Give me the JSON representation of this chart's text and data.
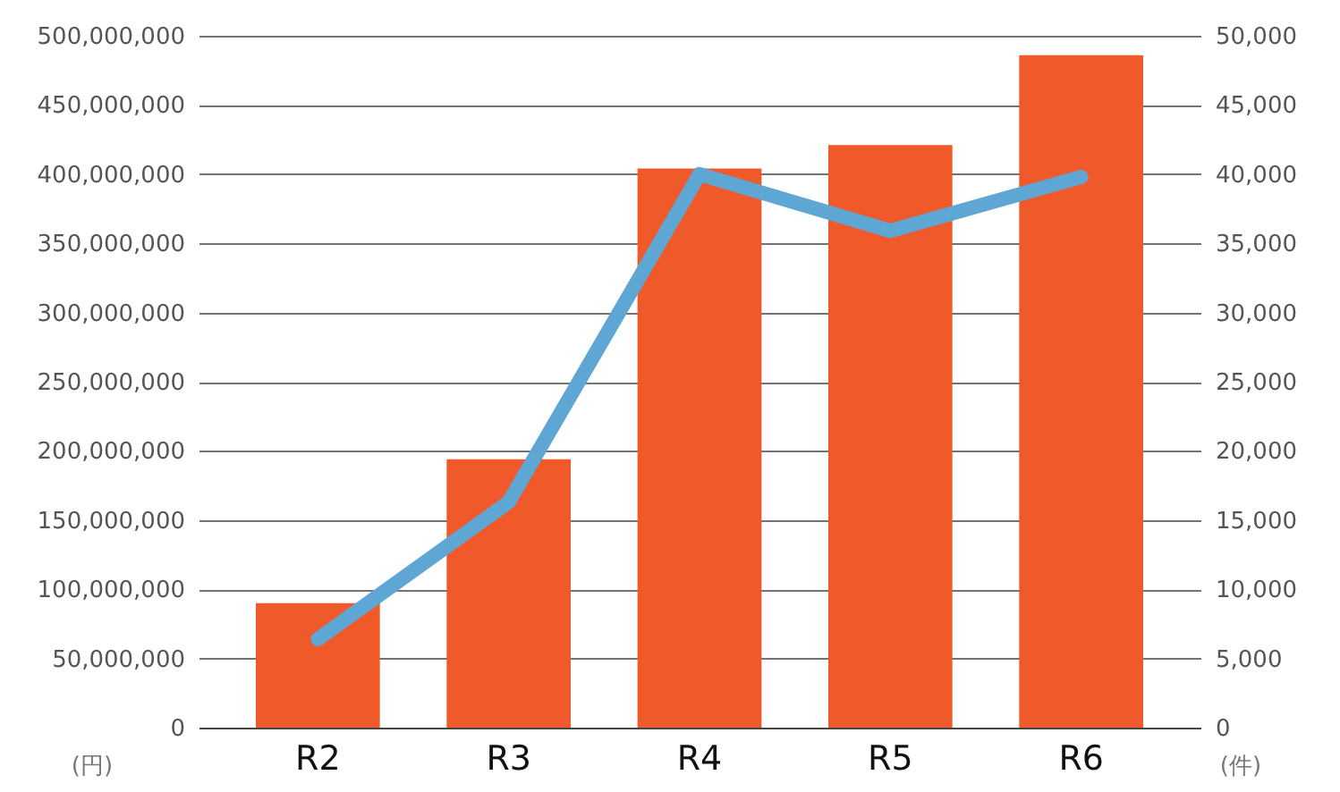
{
  "chart_data": {
    "type": "bar",
    "categories": [
      "R2",
      "R3",
      "R4",
      "R5",
      "R6"
    ],
    "ylabel": "(円)",
    "y2label": "(件)",
    "series": [
      {
        "color": "#f05a2a",
        "values": [
          90000000,
          194000000,
          404000000,
          421000000,
          486000000
        ]
      },
      {
        "type": "line",
        "axis": "y2",
        "color": "#5ea6d3",
        "values": [
          6400,
          16300,
          40000,
          35900,
          39800
        ]
      }
    ],
    "ylim": [
      0,
      500000000
    ],
    "yticks": [
      0,
      {
        "value": 50000000,
        "label": "50,000,000"
      },
      {
        "value": 100000000,
        "label": "100,000,000"
      },
      {
        "value": 150000000,
        "label": "150,000,000"
      },
      {
        "value": 200000000,
        "label": "200,000,000"
      },
      {
        "value": 250000000,
        "label": "250,000,000"
      },
      {
        "value": 300000000,
        "label": "300,000,000"
      },
      {
        "value": 350000000,
        "label": "350,000,000"
      },
      {
        "value": 400000000,
        "label": "400,000,000"
      },
      {
        "value": 450000000,
        "label": "450,000,000"
      },
      {
        "value": 500000000,
        "label": "500,000,000"
      }
    ],
    "y2lim": [
      0,
      50000
    ],
    "y2ticks": [
      0,
      {
        "value": 5000,
        "label": "5,000"
      },
      {
        "value": 10000,
        "label": "10,000"
      },
      {
        "value": 15000,
        "label": "15,000"
      },
      {
        "value": 20000,
        "label": "20,000"
      },
      {
        "value": 25000,
        "label": "25,000"
      },
      {
        "value": 30000,
        "label": "30,000"
      },
      {
        "value": 35000,
        "label": "35,000"
      },
      {
        "value": 40000,
        "label": "40,000"
      },
      {
        "value": 45000,
        "label": "45,000"
      },
      {
        "value": 50000,
        "label": "50,000"
      }
    ],
    "grid": "y",
    "line_style": "solid",
    "marker": "none"
  }
}
